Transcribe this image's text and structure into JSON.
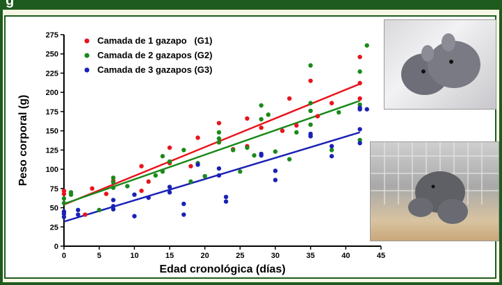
{
  "header": {
    "title": "g"
  },
  "chart_data": {
    "type": "scatter",
    "xlabel": "Edad cronológica (días)",
    "ylabel": "Peso corporal (g)",
    "xlim": [
      0,
      45
    ],
    "ylim": [
      0,
      275
    ],
    "xticks": [
      0,
      5,
      10,
      15,
      20,
      25,
      30,
      35,
      40,
      45
    ],
    "yticks": [
      0,
      25,
      50,
      75,
      100,
      125,
      150,
      175,
      200,
      225,
      250,
      275
    ],
    "legend_position": "top-left",
    "series": [
      {
        "name": "Camada de 1 gazapo   (G1)",
        "color": "#e8141c",
        "fit": [
          [
            0,
            54
          ],
          [
            42,
            211
          ]
        ],
        "points": [
          [
            0,
            72
          ],
          [
            0,
            68
          ],
          [
            3,
            41
          ],
          [
            4,
            75
          ],
          [
            6,
            68
          ],
          [
            7,
            85
          ],
          [
            11,
            104
          ],
          [
            11,
            72
          ],
          [
            12,
            84
          ],
          [
            15,
            108
          ],
          [
            15,
            128
          ],
          [
            18,
            104
          ],
          [
            19,
            141
          ],
          [
            22,
            135
          ],
          [
            22,
            160
          ],
          [
            24,
            126
          ],
          [
            26,
            130
          ],
          [
            26,
            166
          ],
          [
            28,
            154
          ],
          [
            32,
            192
          ],
          [
            31,
            150
          ],
          [
            33,
            157
          ],
          [
            35,
            215
          ],
          [
            36,
            169
          ],
          [
            38,
            186
          ],
          [
            42,
            246
          ],
          [
            42,
            212
          ],
          [
            42,
            192
          ]
        ]
      },
      {
        "name": "Camada de 2 gazapos (G2)",
        "color": "#1a8a1a",
        "fit": [
          [
            0,
            55
          ],
          [
            42,
            189
          ]
        ],
        "points": [
          [
            0,
            62
          ],
          [
            0,
            56
          ],
          [
            1,
            70
          ],
          [
            1,
            67
          ],
          [
            5,
            47
          ],
          [
            7,
            89
          ],
          [
            7,
            83
          ],
          [
            7,
            76
          ],
          [
            9,
            78
          ],
          [
            13,
            92
          ],
          [
            14,
            97
          ],
          [
            14,
            117
          ],
          [
            15,
            110
          ],
          [
            17,
            125
          ],
          [
            18,
            84
          ],
          [
            19,
            108
          ],
          [
            20,
            91
          ],
          [
            22,
            148
          ],
          [
            22,
            140
          ],
          [
            22,
            135
          ],
          [
            24,
            125
          ],
          [
            25,
            97
          ],
          [
            26,
            128
          ],
          [
            27,
            118
          ],
          [
            28,
            165
          ],
          [
            28,
            183
          ],
          [
            29,
            171
          ],
          [
            30,
            123
          ],
          [
            32,
            113
          ],
          [
            33,
            148
          ],
          [
            35,
            235
          ],
          [
            35,
            186
          ],
          [
            35,
            176
          ],
          [
            35,
            158
          ],
          [
            35,
            143
          ],
          [
            38,
            125
          ],
          [
            39,
            174
          ],
          [
            42,
            227
          ],
          [
            42,
            184
          ],
          [
            42,
            138
          ],
          [
            43,
            261
          ]
        ]
      },
      {
        "name": "Camada de 3 gazapos (G3)",
        "color": "#1a22b5",
        "fit": [
          [
            0,
            32
          ],
          [
            42,
            148
          ]
        ],
        "points": [
          [
            0,
            45
          ],
          [
            0,
            42
          ],
          [
            0,
            38
          ],
          [
            2,
            47
          ],
          [
            2,
            41
          ],
          [
            7,
            60
          ],
          [
            7,
            52
          ],
          [
            7,
            48
          ],
          [
            10,
            39
          ],
          [
            10,
            67
          ],
          [
            12,
            63
          ],
          [
            15,
            77
          ],
          [
            15,
            70
          ],
          [
            17,
            55
          ],
          [
            17,
            41
          ],
          [
            19,
            106
          ],
          [
            22,
            101
          ],
          [
            22,
            92
          ],
          [
            23,
            64
          ],
          [
            23,
            58
          ],
          [
            28,
            118
          ],
          [
            28,
            120
          ],
          [
            30,
            98
          ],
          [
            30,
            86
          ],
          [
            35,
            143
          ],
          [
            35,
            146
          ],
          [
            38,
            130
          ],
          [
            38,
            117
          ],
          [
            42,
            180
          ],
          [
            42,
            178
          ],
          [
            42,
            152
          ],
          [
            42,
            134
          ],
          [
            43,
            178
          ]
        ]
      }
    ]
  }
}
